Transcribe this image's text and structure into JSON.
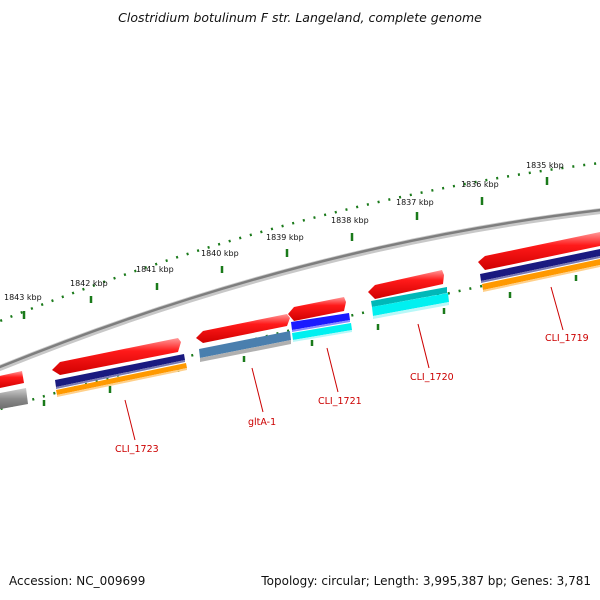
{
  "header": {
    "title": "Clostridium botulinum F str. Langeland, complete genome"
  },
  "footer": {
    "accession": "Accession: NC_009699",
    "summary": "Topology: circular; Length: 3,995,387 bp; Genes: 3,781"
  },
  "map": {
    "ruler_ticks": [
      {
        "kbp": 1843,
        "label": "1843 kbp"
      },
      {
        "kbp": 1842,
        "label": "1842 kbp"
      },
      {
        "kbp": 1841,
        "label": "1841 kbp"
      },
      {
        "kbp": 1840,
        "label": "1840 kbp"
      },
      {
        "kbp": 1839,
        "label": "1839 kbp"
      },
      {
        "kbp": 1838,
        "label": "1838 kbp"
      },
      {
        "kbp": 1837,
        "label": "1837 kbp"
      },
      {
        "kbp": 1836,
        "label": "1836 kbp"
      },
      {
        "kbp": 1835,
        "label": "1835 kbp"
      }
    ],
    "gene_labels": [
      "CLI_1723",
      "gltA-1",
      "CLI_1721",
      "CLI_1720",
      "CLI_1719"
    ],
    "colors": {
      "backbone": "#808080",
      "ruler": "#1a7a1a",
      "cds_forward": "#ff1a1a",
      "feature_navy": "#1a1a80",
      "feature_orange": "#ff9900",
      "feature_blue": "#1a1aff",
      "feature_cyan": "#00f0f0",
      "feature_steel": "#4a7fae",
      "feature_grey": "#9a9a9a",
      "label_red": "#cc0000"
    }
  }
}
